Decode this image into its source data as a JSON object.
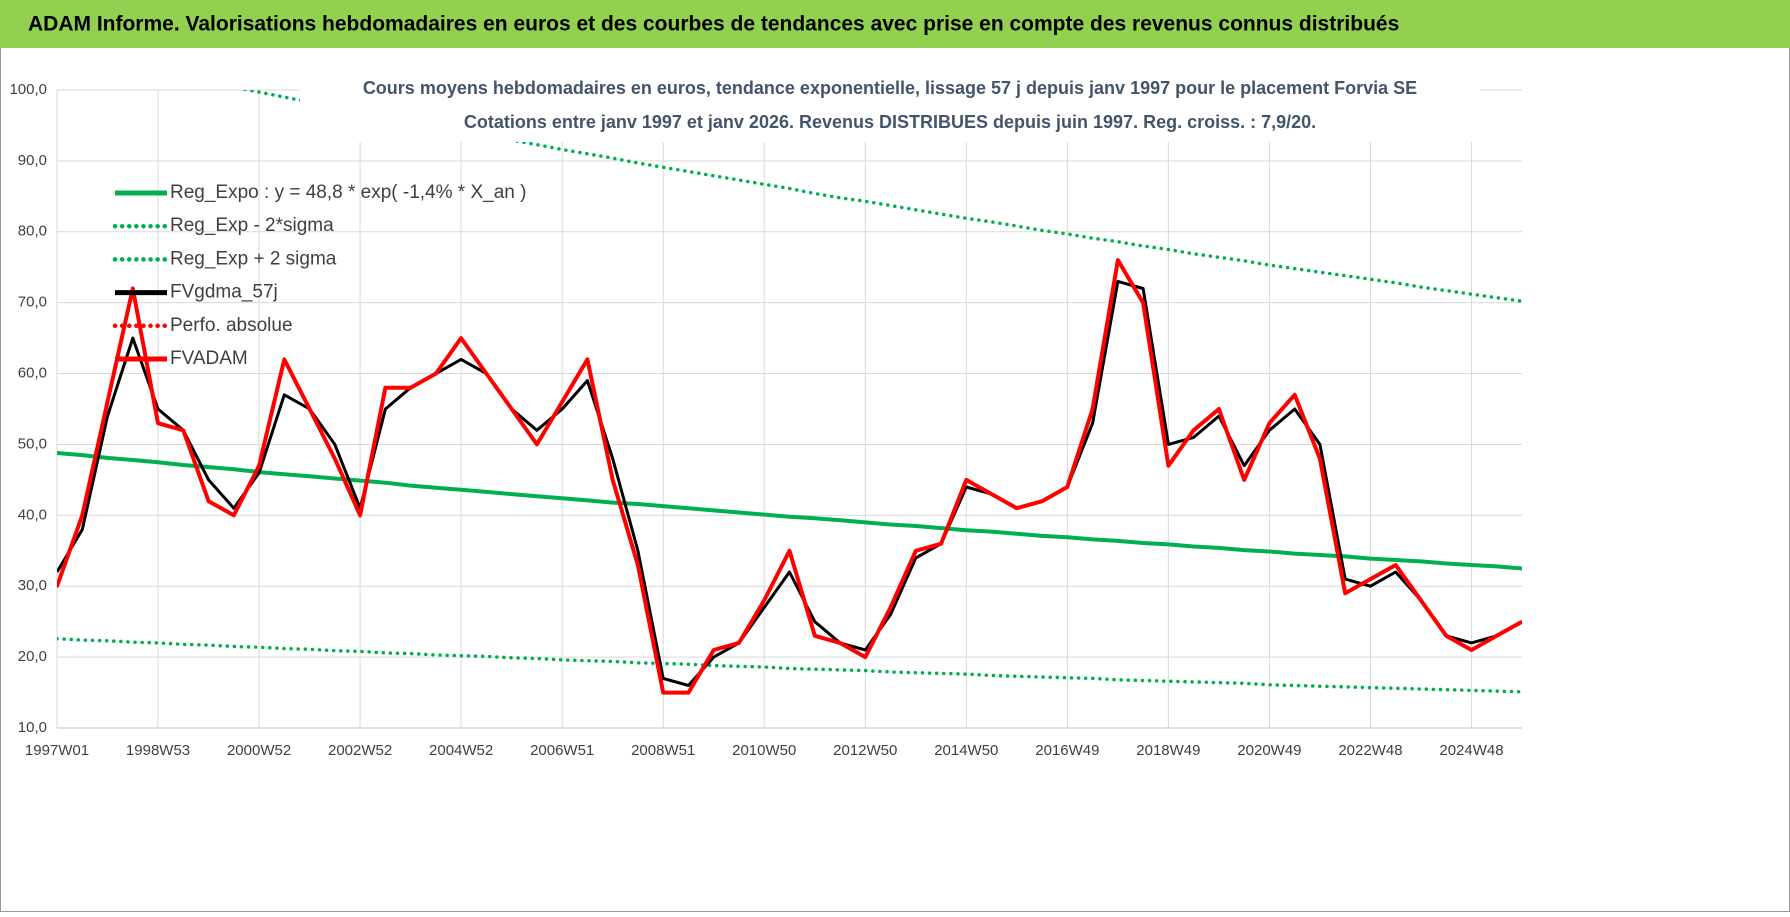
{
  "header": {
    "title": "ADAM Informe. Valorisations hebdomadaires en euros et des courbes de tendances avec prise en compte des revenus connus distribués"
  },
  "chart_data": {
    "type": "line",
    "title": "Cours moyens hebdomadaires en euros, tendance exponentielle, lissage 57 j depuis janv 1997  pour le placement Forvia SE",
    "subtitle": "Cotations entre janv 1997 et janv 2026. Revenus DISTRIBUES depuis juin 1997. Reg. croiss. : 7,9/20.",
    "categories": [
      "1997W01",
      null,
      null,
      null,
      "1998W53",
      null,
      null,
      null,
      "2000W52",
      null,
      null,
      null,
      "2002W52",
      null,
      null,
      null,
      "2004W52",
      null,
      null,
      null,
      "2006W51",
      null,
      null,
      null,
      "2008W51",
      null,
      null,
      null,
      "2010W50",
      null,
      null,
      null,
      "2012W50",
      null,
      null,
      null,
      "2014W50",
      null,
      null,
      null,
      "2016W49",
      null,
      null,
      null,
      "2018W49",
      null,
      null,
      null,
      "2020W49",
      null,
      null,
      null,
      "2022W48",
      null,
      null,
      null,
      "2024W48",
      null,
      null
    ],
    "series": [
      {
        "name": "Reg_Expo : y = 48,8 * exp( -1,4% *  X_an )",
        "color": "#00b050",
        "line_style": "solid",
        "values": [
          48.8,
          48.5,
          48.1,
          47.8,
          47.5,
          47.1,
          46.8,
          46.5,
          46.1,
          45.8,
          45.5,
          45.2,
          44.9,
          44.6,
          44.2,
          43.9,
          43.6,
          43.3,
          43.0,
          42.7,
          42.4,
          42.1,
          41.8,
          41.6,
          41.3,
          41.0,
          40.7,
          40.4,
          40.1,
          39.8,
          39.6,
          39.3,
          39.0,
          38.7,
          38.5,
          38.2,
          37.9,
          37.7,
          37.4,
          37.1,
          36.9,
          36.6,
          36.4,
          36.1,
          35.9,
          35.6,
          35.4,
          35.1,
          34.9,
          34.6,
          34.4,
          34.2,
          33.9,
          33.7,
          33.5,
          33.2,
          33.0,
          32.8,
          32.5
        ]
      },
      {
        "name": "Reg_Exp - 2*sigma",
        "color": "#00b050",
        "line_style": "dotted",
        "values": [
          22.6,
          22.4,
          22.3,
          22.1,
          22.0,
          21.8,
          21.7,
          21.5,
          21.4,
          21.2,
          21.1,
          20.9,
          20.8,
          20.6,
          20.5,
          20.3,
          20.2,
          20.1,
          19.9,
          19.8,
          19.6,
          19.5,
          19.4,
          19.2,
          19.1,
          19.0,
          18.8,
          18.7,
          18.6,
          18.4,
          18.3,
          18.2,
          18.1,
          17.9,
          17.8,
          17.7,
          17.6,
          17.4,
          17.3,
          17.2,
          17.1,
          17.0,
          16.8,
          16.7,
          16.6,
          16.5,
          16.4,
          16.3,
          16.1,
          16.0,
          15.9,
          15.8,
          15.7,
          15.6,
          15.5,
          15.4,
          15.3,
          15.2,
          15.1
        ]
      },
      {
        "name": "Reg_Exp + 2 sigma",
        "color": "#00b050",
        "line_style": "dotted",
        "values": [
          105.4,
          104.6,
          103.9,
          103.2,
          102.5,
          101.8,
          101.1,
          100.4,
          99.7,
          99.0,
          98.3,
          97.6,
          96.9,
          96.2,
          95.6,
          94.9,
          94.2,
          93.6,
          92.9,
          92.3,
          91.6,
          91.0,
          90.4,
          89.7,
          89.1,
          88.5,
          87.9,
          87.3,
          86.7,
          86.1,
          85.4,
          84.8,
          84.3,
          83.7,
          83.1,
          82.5,
          81.9,
          81.4,
          80.8,
          80.2,
          79.7,
          79.1,
          78.6,
          78.0,
          77.5,
          76.9,
          76.4,
          75.9,
          75.3,
          74.8,
          74.3,
          73.8,
          73.3,
          72.8,
          72.2,
          71.7,
          71.2,
          70.7,
          70.2
        ]
      },
      {
        "name": "FVgdma_57j",
        "color": "#000000",
        "line_style": "solid",
        "values": [
          32,
          38,
          54,
          65,
          55,
          52,
          45,
          41,
          46,
          57,
          55,
          50,
          41,
          55,
          58,
          60,
          62,
          60,
          55,
          52,
          55,
          59,
          48,
          35,
          17,
          16,
          20,
          22,
          27,
          32,
          25,
          22,
          21,
          26,
          34,
          36,
          44,
          43,
          41,
          42,
          44,
          53,
          73,
          72,
          50,
          51,
          54,
          47,
          52,
          55,
          50,
          31,
          30,
          32,
          28,
          23,
          22,
          23,
          25
        ]
      },
      {
        "name": "Perfo. absolue",
        "color": "#ff0000",
        "line_style": "dotted",
        "values": [
          30,
          40,
          56,
          72,
          53,
          52,
          42,
          40,
          47,
          62,
          55,
          48,
          40,
          58,
          58,
          60,
          65,
          60,
          55,
          50,
          56,
          62,
          45,
          33,
          15,
          15,
          21,
          22,
          28,
          35,
          23,
          22,
          20,
          27,
          35,
          36,
          45,
          43,
          41,
          42,
          44,
          55,
          76,
          70,
          47,
          52,
          55,
          45,
          53,
          57,
          48,
          29,
          31,
          33,
          28,
          23,
          21,
          23,
          25
        ]
      },
      {
        "name": "FVADAM",
        "color": "#ff0000",
        "line_style": "solid",
        "values": [
          30,
          40,
          56,
          72,
          53,
          52,
          42,
          40,
          47,
          62,
          55,
          48,
          40,
          58,
          58,
          60,
          65,
          60,
          55,
          50,
          56,
          62,
          45,
          33,
          15,
          15,
          21,
          22,
          28,
          35,
          23,
          22,
          20,
          27,
          35,
          36,
          45,
          43,
          41,
          42,
          44,
          55,
          76,
          70,
          47,
          52,
          55,
          45,
          53,
          57,
          48,
          29,
          31,
          33,
          28,
          23,
          21,
          23,
          25
        ]
      }
    ],
    "ylim": [
      10,
      100
    ],
    "yticks": [
      {
        "value": 10,
        "label": "10,0"
      },
      {
        "value": 20,
        "label": "20,0"
      },
      {
        "value": 30,
        "label": "30,0"
      },
      {
        "value": 40,
        "label": "40,0"
      },
      {
        "value": 50,
        "label": "50,0"
      },
      {
        "value": 60,
        "label": "60,0"
      },
      {
        "value": 70,
        "label": "70,0"
      },
      {
        "value": 80,
        "label": "80,0"
      },
      {
        "value": 90,
        "label": "90,0"
      },
      {
        "value": 100,
        "label": "100,0"
      }
    ],
    "grid": true,
    "legend": "upper left"
  }
}
